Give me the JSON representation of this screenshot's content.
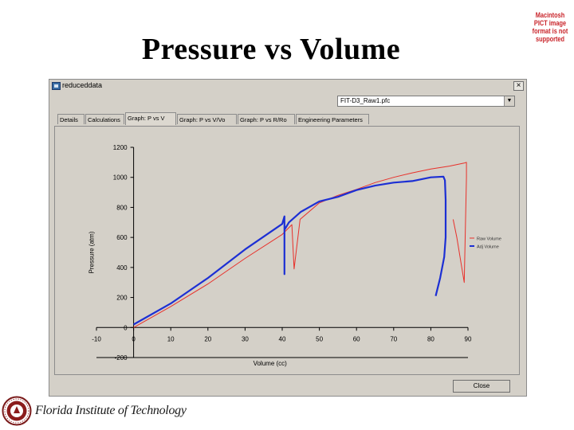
{
  "slide": {
    "title": "Pressure vs Volume",
    "pict_note": "Macintosh PICT image format is not supported"
  },
  "window": {
    "title": "reduceddata",
    "close_glyph": "×",
    "select_value": "FIT-D3_Raw1.pfc",
    "select_arrow": "▼",
    "tabs": [
      {
        "label": "Details"
      },
      {
        "label": "Calculations"
      },
      {
        "label": "Graph: P vs V"
      },
      {
        "label": "Graph: P vs V/Vo"
      },
      {
        "label": "Graph: P vs R/Ro"
      },
      {
        "label": "Engineering Parameters"
      }
    ],
    "active_tab_index": 2,
    "close_button_label": "Close"
  },
  "footer": {
    "logo_icon": "fit-seal-icon",
    "institution": "Florida Institute of Technology"
  },
  "chart_data": {
    "type": "line",
    "title": "",
    "xlabel": "Volume (cc)",
    "ylabel": "Pressure (atm)",
    "xlim": [
      -10,
      90
    ],
    "ylim": [
      -200,
      1200
    ],
    "xticks": [
      "-10",
      "0",
      "10",
      "20",
      "30",
      "40",
      "50",
      "60",
      "70",
      "80",
      "90"
    ],
    "yticks": [
      "-200",
      "0",
      "200",
      "400",
      "600",
      "800",
      "1000",
      "1200"
    ],
    "legend_position": "right",
    "series": [
      {
        "name": "Raw Volume",
        "color": "#e8302a",
        "x": [
          0,
          10,
          20,
          30,
          40,
          42.6,
          43.2,
          44.8,
          50,
          55,
          60,
          65,
          70,
          75,
          80,
          85,
          89,
          89.6,
          89.6,
          89,
          87,
          86
        ],
        "y": [
          0,
          140,
          290,
          460,
          620,
          685,
          390,
          720,
          830,
          880,
          920,
          965,
          1000,
          1030,
          1055,
          1075,
          1095,
          1100,
          1000,
          300,
          600,
          720
        ]
      },
      {
        "name": "Adj Volume",
        "color": "#1c2fd4",
        "x": [
          0,
          10,
          20,
          30,
          40,
          40.6,
          40.6,
          40.6,
          41.8,
          45,
          50,
          55,
          60,
          65,
          70,
          75,
          80,
          83.4,
          83.8,
          84,
          84,
          83.6,
          82.5,
          81.3
        ],
        "y": [
          20,
          160,
          330,
          520,
          690,
          740,
          355,
          650,
          700,
          770,
          840,
          870,
          915,
          945,
          965,
          975,
          1000,
          1005,
          980,
          850,
          600,
          470,
          330,
          210
        ]
      }
    ]
  }
}
